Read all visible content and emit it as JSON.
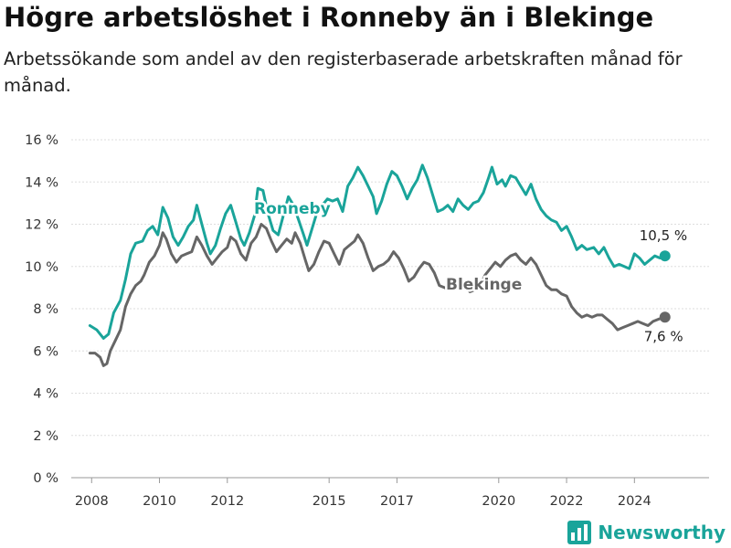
{
  "header": {
    "title": "Högre arbetslöshet i Ronneby än i Blekinge",
    "subtitle": "Arbetssökande som andel av den registerbaserade arbetskraften månad för månad."
  },
  "brand": {
    "name": "Newsworthy",
    "icon": "bar-chart-logo-icon",
    "color": "#1aa49a"
  },
  "chart_data": {
    "type": "line",
    "title": "Högre arbetslöshet i Ronneby än i Blekinge",
    "subtitle": "Arbetssökande som andel av den registerbaserade arbetskraften månad för månad.",
    "xlabel": "",
    "ylabel": "",
    "xlim": [
      2007.4,
      2026.2
    ],
    "ylim": [
      0,
      16
    ],
    "y_ticks": [
      0,
      2,
      4,
      6,
      8,
      10,
      12,
      14,
      16
    ],
    "y_tick_labels": [
      "0 %",
      "2 %",
      "4 %",
      "6 %",
      "8 %",
      "10 %",
      "12 %",
      "14 %",
      "16 %"
    ],
    "x_ticks": [
      2008,
      2010,
      2012,
      2015,
      2017,
      2020,
      2022,
      2024
    ],
    "x_tick_labels": [
      "2008",
      "2010",
      "2012",
      "2015",
      "2017",
      "2020",
      "2022",
      "2024"
    ],
    "grid": true,
    "legend": "direct labels on lines",
    "series": [
      {
        "name": "Ronneby",
        "color": "#1aa49a",
        "end_label": "10,5 %",
        "points": [
          [
            2007.95,
            7.2
          ],
          [
            2008.15,
            7.0
          ],
          [
            2008.35,
            6.6
          ],
          [
            2008.5,
            6.8
          ],
          [
            2008.65,
            7.8
          ],
          [
            2008.85,
            8.4
          ],
          [
            2009.0,
            9.4
          ],
          [
            2009.15,
            10.6
          ],
          [
            2009.3,
            11.1
          ],
          [
            2009.5,
            11.2
          ],
          [
            2009.65,
            11.7
          ],
          [
            2009.8,
            11.9
          ],
          [
            2009.95,
            11.5
          ],
          [
            2010.1,
            12.8
          ],
          [
            2010.25,
            12.3
          ],
          [
            2010.4,
            11.4
          ],
          [
            2010.55,
            11.0
          ],
          [
            2010.7,
            11.4
          ],
          [
            2010.85,
            11.9
          ],
          [
            2011.0,
            12.2
          ],
          [
            2011.1,
            12.9
          ],
          [
            2011.25,
            12.0
          ],
          [
            2011.4,
            11.1
          ],
          [
            2011.5,
            10.6
          ],
          [
            2011.65,
            11.0
          ],
          [
            2011.8,
            11.8
          ],
          [
            2011.95,
            12.5
          ],
          [
            2012.1,
            12.9
          ],
          [
            2012.25,
            12.1
          ],
          [
            2012.4,
            11.3
          ],
          [
            2012.5,
            11.0
          ],
          [
            2012.65,
            11.6
          ],
          [
            2012.8,
            12.4
          ],
          [
            2012.9,
            13.7
          ],
          [
            2013.05,
            13.6
          ],
          [
            2013.2,
            12.5
          ],
          [
            2013.35,
            11.7
          ],
          [
            2013.5,
            11.5
          ],
          [
            2013.65,
            12.4
          ],
          [
            2013.8,
            13.3
          ],
          [
            2013.95,
            12.9
          ],
          [
            2014.1,
            12.2
          ],
          [
            2014.25,
            11.5
          ],
          [
            2014.35,
            11.0
          ],
          [
            2014.5,
            11.8
          ],
          [
            2014.65,
            12.6
          ],
          [
            2014.8,
            12.9
          ],
          [
            2014.95,
            13.2
          ],
          [
            2015.1,
            13.1
          ],
          [
            2015.25,
            13.2
          ],
          [
            2015.4,
            12.6
          ],
          [
            2015.55,
            13.8
          ],
          [
            2015.7,
            14.2
          ],
          [
            2015.85,
            14.7
          ],
          [
            2016.0,
            14.3
          ],
          [
            2016.15,
            13.8
          ],
          [
            2016.3,
            13.3
          ],
          [
            2016.4,
            12.5
          ],
          [
            2016.55,
            13.1
          ],
          [
            2016.7,
            13.9
          ],
          [
            2016.85,
            14.5
          ],
          [
            2017.0,
            14.3
          ],
          [
            2017.15,
            13.8
          ],
          [
            2017.3,
            13.2
          ],
          [
            2017.45,
            13.7
          ],
          [
            2017.6,
            14.1
          ],
          [
            2017.75,
            14.8
          ],
          [
            2017.9,
            14.2
          ],
          [
            2018.05,
            13.4
          ],
          [
            2018.2,
            12.6
          ],
          [
            2018.35,
            12.7
          ],
          [
            2018.5,
            12.9
          ],
          [
            2018.65,
            12.6
          ],
          [
            2018.8,
            13.2
          ],
          [
            2018.95,
            12.9
          ],
          [
            2019.1,
            12.7
          ],
          [
            2019.25,
            13.0
          ],
          [
            2019.4,
            13.1
          ],
          [
            2019.55,
            13.5
          ],
          [
            2019.7,
            14.2
          ],
          [
            2019.8,
            14.7
          ],
          [
            2019.95,
            13.9
          ],
          [
            2020.1,
            14.1
          ],
          [
            2020.2,
            13.8
          ],
          [
            2020.35,
            14.3
          ],
          [
            2020.5,
            14.2
          ],
          [
            2020.65,
            13.8
          ],
          [
            2020.8,
            13.4
          ],
          [
            2020.95,
            13.9
          ],
          [
            2021.1,
            13.2
          ],
          [
            2021.25,
            12.7
          ],
          [
            2021.4,
            12.4
          ],
          [
            2021.55,
            12.2
          ],
          [
            2021.7,
            12.1
          ],
          [
            2021.85,
            11.7
          ],
          [
            2022.0,
            11.9
          ],
          [
            2022.15,
            11.4
          ],
          [
            2022.3,
            10.8
          ],
          [
            2022.45,
            11.0
          ],
          [
            2022.6,
            10.8
          ],
          [
            2022.8,
            10.9
          ],
          [
            2022.95,
            10.6
          ],
          [
            2023.1,
            10.9
          ],
          [
            2023.25,
            10.4
          ],
          [
            2023.4,
            10.0
          ],
          [
            2023.55,
            10.1
          ],
          [
            2023.7,
            10.0
          ],
          [
            2023.85,
            9.9
          ],
          [
            2024.0,
            10.6
          ],
          [
            2024.15,
            10.4
          ],
          [
            2024.3,
            10.1
          ],
          [
            2024.45,
            10.3
          ],
          [
            2024.6,
            10.5
          ],
          [
            2024.75,
            10.4
          ],
          [
            2024.9,
            10.5
          ]
        ]
      },
      {
        "name": "Blekinge",
        "color": "#666666",
        "end_label": "7,6 %",
        "points": [
          [
            2007.95,
            5.9
          ],
          [
            2008.1,
            5.9
          ],
          [
            2008.25,
            5.7
          ],
          [
            2008.35,
            5.3
          ],
          [
            2008.45,
            5.4
          ],
          [
            2008.55,
            6.0
          ],
          [
            2008.7,
            6.5
          ],
          [
            2008.85,
            7.0
          ],
          [
            2009.0,
            8.1
          ],
          [
            2009.15,
            8.7
          ],
          [
            2009.3,
            9.1
          ],
          [
            2009.45,
            9.3
          ],
          [
            2009.55,
            9.6
          ],
          [
            2009.7,
            10.2
          ],
          [
            2009.85,
            10.5
          ],
          [
            2010.0,
            11.0
          ],
          [
            2010.1,
            11.6
          ],
          [
            2010.2,
            11.3
          ],
          [
            2010.35,
            10.6
          ],
          [
            2010.5,
            10.2
          ],
          [
            2010.65,
            10.5
          ],
          [
            2010.8,
            10.6
          ],
          [
            2010.95,
            10.7
          ],
          [
            2011.1,
            11.4
          ],
          [
            2011.25,
            11.0
          ],
          [
            2011.4,
            10.5
          ],
          [
            2011.55,
            10.1
          ],
          [
            2011.7,
            10.4
          ],
          [
            2011.85,
            10.7
          ],
          [
            2012.0,
            10.9
          ],
          [
            2012.1,
            11.4
          ],
          [
            2012.25,
            11.2
          ],
          [
            2012.4,
            10.6
          ],
          [
            2012.55,
            10.3
          ],
          [
            2012.7,
            11.1
          ],
          [
            2012.85,
            11.4
          ],
          [
            2013.0,
            12.0
          ],
          [
            2013.15,
            11.8
          ],
          [
            2013.3,
            11.2
          ],
          [
            2013.45,
            10.7
          ],
          [
            2013.6,
            11.0
          ],
          [
            2013.75,
            11.3
          ],
          [
            2013.9,
            11.1
          ],
          [
            2014.0,
            11.6
          ],
          [
            2014.15,
            11.1
          ],
          [
            2014.3,
            10.3
          ],
          [
            2014.4,
            9.8
          ],
          [
            2014.55,
            10.1
          ],
          [
            2014.7,
            10.7
          ],
          [
            2014.85,
            11.2
          ],
          [
            2015.0,
            11.1
          ],
          [
            2015.15,
            10.6
          ],
          [
            2015.3,
            10.1
          ],
          [
            2015.45,
            10.8
          ],
          [
            2015.6,
            11.0
          ],
          [
            2015.75,
            11.2
          ],
          [
            2015.85,
            11.5
          ],
          [
            2016.0,
            11.1
          ],
          [
            2016.15,
            10.4
          ],
          [
            2016.3,
            9.8
          ],
          [
            2016.45,
            10.0
          ],
          [
            2016.6,
            10.1
          ],
          [
            2016.75,
            10.3
          ],
          [
            2016.9,
            10.7
          ],
          [
            2017.05,
            10.4
          ],
          [
            2017.2,
            9.9
          ],
          [
            2017.35,
            9.3
          ],
          [
            2017.5,
            9.5
          ],
          [
            2017.65,
            9.9
          ],
          [
            2017.8,
            10.2
          ],
          [
            2017.95,
            10.1
          ],
          [
            2018.1,
            9.7
          ],
          [
            2018.25,
            9.1
          ],
          [
            2018.4,
            9.0
          ],
          [
            2018.55,
            8.9
          ],
          [
            2018.7,
            9.2
          ],
          [
            2018.85,
            9.3
          ],
          [
            2019.0,
            9.1
          ],
          [
            2019.15,
            8.8
          ],
          [
            2019.3,
            8.9
          ],
          [
            2019.45,
            9.1
          ],
          [
            2019.6,
            9.6
          ],
          [
            2019.75,
            9.9
          ],
          [
            2019.9,
            10.2
          ],
          [
            2020.05,
            10.0
          ],
          [
            2020.2,
            10.3
          ],
          [
            2020.35,
            10.5
          ],
          [
            2020.5,
            10.6
          ],
          [
            2020.65,
            10.3
          ],
          [
            2020.8,
            10.1
          ],
          [
            2020.95,
            10.4
          ],
          [
            2021.1,
            10.1
          ],
          [
            2021.25,
            9.6
          ],
          [
            2021.4,
            9.1
          ],
          [
            2021.55,
            8.9
          ],
          [
            2021.7,
            8.9
          ],
          [
            2021.85,
            8.7
          ],
          [
            2022.0,
            8.6
          ],
          [
            2022.15,
            8.1
          ],
          [
            2022.3,
            7.8
          ],
          [
            2022.45,
            7.6
          ],
          [
            2022.6,
            7.7
          ],
          [
            2022.75,
            7.6
          ],
          [
            2022.9,
            7.7
          ],
          [
            2023.05,
            7.7
          ],
          [
            2023.2,
            7.5
          ],
          [
            2023.35,
            7.3
          ],
          [
            2023.5,
            7.0
          ],
          [
            2023.65,
            7.1
          ],
          [
            2023.8,
            7.2
          ],
          [
            2023.95,
            7.3
          ],
          [
            2024.1,
            7.4
          ],
          [
            2024.25,
            7.3
          ],
          [
            2024.4,
            7.2
          ],
          [
            2024.55,
            7.4
          ],
          [
            2024.7,
            7.5
          ],
          [
            2024.9,
            7.6
          ]
        ]
      }
    ]
  }
}
